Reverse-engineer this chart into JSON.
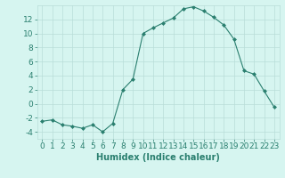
{
  "x": [
    0,
    1,
    2,
    3,
    4,
    5,
    6,
    7,
    8,
    9,
    10,
    11,
    12,
    13,
    14,
    15,
    16,
    17,
    18,
    19,
    20,
    21,
    22,
    23
  ],
  "y": [
    -2.5,
    -2.3,
    -3.0,
    -3.2,
    -3.5,
    -3.0,
    -4.0,
    -2.8,
    2.0,
    3.5,
    10.0,
    10.8,
    11.5,
    12.2,
    13.5,
    13.8,
    13.2,
    12.3,
    11.2,
    9.2,
    4.7,
    4.2,
    1.8,
    -0.5
  ],
  "line_color": "#2a7f6f",
  "marker": "D",
  "marker_size": 2,
  "bg_color": "#d6f5f0",
  "grid_color": "#b8ddd8",
  "xlabel": "Humidex (Indice chaleur)",
  "xlim": [
    -0.5,
    23.5
  ],
  "ylim": [
    -5,
    14
  ],
  "yticks": [
    -4,
    -2,
    0,
    2,
    4,
    6,
    8,
    10,
    12
  ],
  "xticks": [
    0,
    1,
    2,
    3,
    4,
    5,
    6,
    7,
    8,
    9,
    10,
    11,
    12,
    13,
    14,
    15,
    16,
    17,
    18,
    19,
    20,
    21,
    22,
    23
  ],
  "tick_color": "#2a7f6f",
  "label_color": "#2a7f6f",
  "xlabel_fontsize": 7,
  "tick_fontsize": 6.5
}
